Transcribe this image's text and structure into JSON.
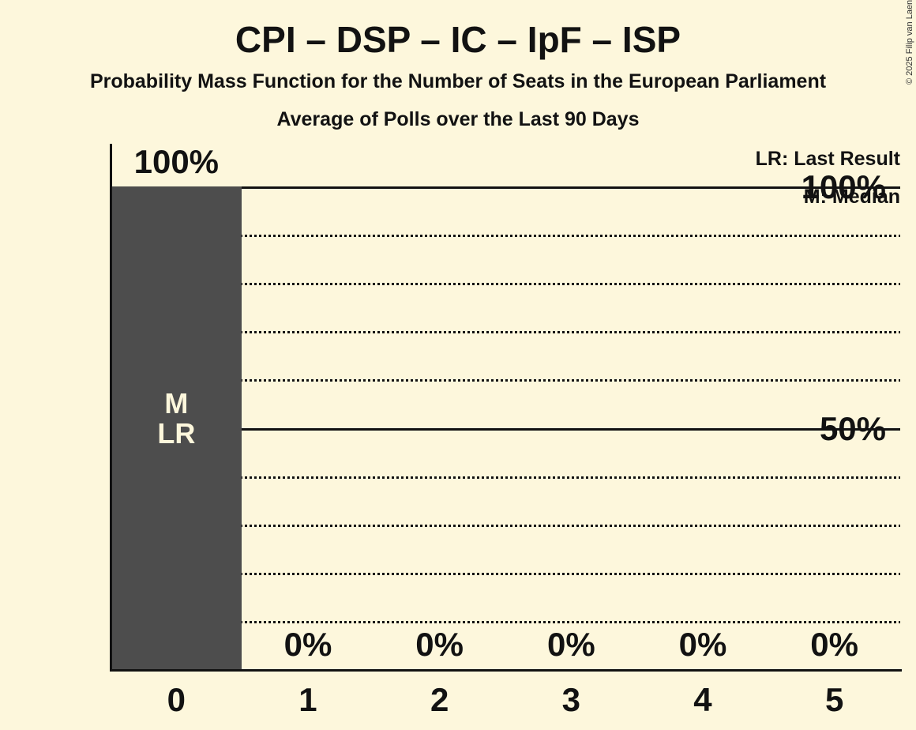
{
  "title": "CPI – DSP – IC – IpF – ISP",
  "subtitle": "Probability Mass Function for the Number of Seats in the European Parliament",
  "subsubtitle": "Average of Polls over the Last 90 Days",
  "copyright": "© 2025 Filip van Laenen",
  "legend": {
    "last_result": "LR: Last Result",
    "median": "M: Median"
  },
  "colors": {
    "background": "#FDF7DC",
    "bar": "#4D4D4D",
    "ink": "#121212",
    "bar_label": "#FDF7DC",
    "copyright": "#333333"
  },
  "chart_data": {
    "type": "bar",
    "title": "CPI – DSP – IC – IpF – ISP",
    "categories": [
      "0",
      "1",
      "2",
      "3",
      "4",
      "5"
    ],
    "values": [
      100,
      0,
      0,
      0,
      0,
      0
    ],
    "value_labels": [
      "100%",
      "0%",
      "0%",
      "0%",
      "0%",
      "0%"
    ],
    "bar_annotations": [
      [
        "M",
        "LR"
      ],
      [],
      [],
      [],
      [],
      []
    ],
    "xlabel": "",
    "ylabel": "",
    "ylim": [
      0,
      100
    ],
    "yticks": [
      {
        "value": 100,
        "label": "100%"
      },
      {
        "value": 50,
        "label": "50%"
      }
    ],
    "gridlines": {
      "solid_at": [
        100,
        50
      ],
      "dotted_at": [
        90,
        80,
        70,
        60,
        40,
        30,
        20,
        10
      ]
    },
    "legend_position": "top-right",
    "grid": true
  }
}
